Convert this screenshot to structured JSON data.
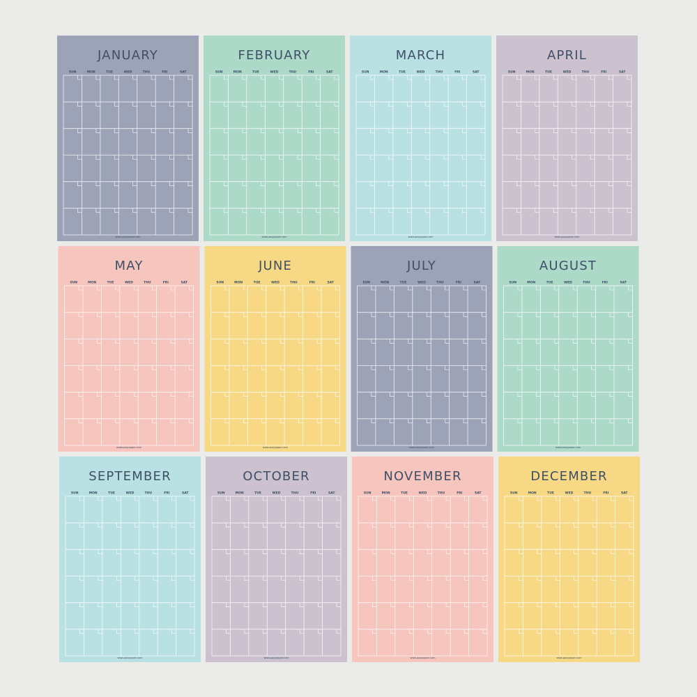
{
  "months": [
    "JANUARY",
    "FEBRUARY",
    "MARCH",
    "APRIL",
    "MAY",
    "JUNE",
    "JULY",
    "AUGUST",
    "SEPTEMBER",
    "OCTOBER",
    "NOVEMBER",
    "DECEMBER"
  ],
  "weekdays": [
    "SUN",
    "MON",
    "TUE",
    "WED",
    "THU",
    "FRI",
    "SAT"
  ],
  "footer": "www.posypaper.com"
}
